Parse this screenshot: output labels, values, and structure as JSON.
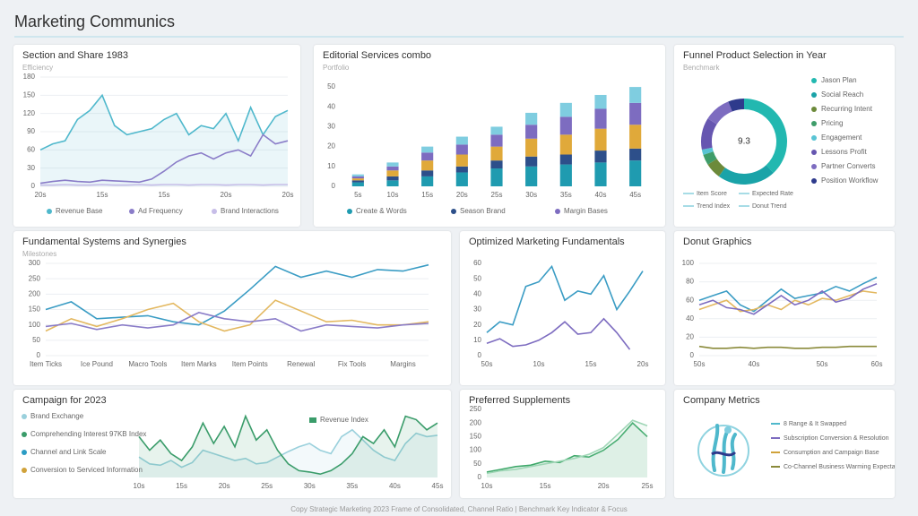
{
  "header": {
    "title": "Marketing Communics"
  },
  "chart_data": [
    {
      "type": "line",
      "title": "Section and Share 1983",
      "subtitle": "Efficiency",
      "categories": [
        "20s",
        null,
        null,
        null,
        null,
        "15s",
        null,
        null,
        null,
        null,
        "15s",
        null,
        null,
        null,
        null,
        "20s",
        null,
        null,
        null,
        null,
        "20s"
      ],
      "series": [
        {
          "name": "Revenue Base",
          "color": "#4fb8cc",
          "values": [
            60,
            70,
            75,
            110,
            125,
            150,
            100,
            85,
            90,
            95,
            110,
            120,
            85,
            100,
            95,
            120,
            75,
            130,
            85,
            115,
            125
          ]
        },
        {
          "name": "Ad Frequency",
          "color": "#8a7cc8",
          "values": [
            5,
            8,
            10,
            8,
            7,
            10,
            9,
            8,
            7,
            12,
            25,
            40,
            50,
            55,
            45,
            55,
            60,
            50,
            85,
            70,
            75
          ]
        },
        {
          "name": "Brand Interactions",
          "color": "#c7bde8",
          "values": [
            2,
            2,
            3,
            2,
            2,
            3,
            2,
            2,
            3,
            2,
            3,
            3,
            2,
            3,
            3,
            2,
            3,
            3,
            2,
            3,
            3
          ]
        }
      ],
      "ylim": [
        0,
        180
      ],
      "yticks": [
        0,
        30,
        60,
        90,
        120,
        150,
        180
      ],
      "grid": true
    },
    {
      "type": "stacked_bar",
      "title": "Editorial Services combo",
      "subtitle": "Portfolio",
      "categories": [
        "5s",
        "10s",
        "15s",
        "20s",
        "25s",
        "30s",
        "35s",
        "40s",
        "45s"
      ],
      "series": [
        {
          "name": "Create & Words",
          "color": "#1f9bb0",
          "values": [
            2,
            3,
            5,
            7,
            9,
            10,
            11,
            12,
            13
          ]
        },
        {
          "name": "Season Brand",
          "color": "#2d4f8a",
          "values": [
            1,
            2,
            3,
            3,
            4,
            5,
            5,
            6,
            6
          ]
        },
        {
          "color": "#e0a93a",
          "values": [
            1,
            3,
            5,
            6,
            7,
            9,
            10,
            11,
            12
          ]
        },
        {
          "name": "Margin Bases",
          "color": "#7d6cc0",
          "values": [
            1,
            2,
            4,
            5,
            6,
            7,
            9,
            10,
            11
          ]
        },
        {
          "color": "#7fcde0",
          "values": [
            1,
            2,
            3,
            4,
            4,
            6,
            7,
            7,
            8
          ]
        }
      ],
      "ylim": [
        0,
        55
      ],
      "yticks": [
        0,
        10,
        20,
        30,
        40,
        50
      ],
      "grid": false
    },
    {
      "type": "donut",
      "title": "Funnel Product Selection in Year",
      "subtitle": "Benchmark",
      "center_label": "9.3",
      "categories": [
        "Jason Plan",
        "Social Reach",
        "Recurring Intent",
        "Pricing",
        "Engagement",
        "Lessons Profit",
        "Partner Converts",
        "Position Workflow"
      ],
      "colors": [
        "#22b8b0",
        "#1aa3a8",
        "#6c8a3a",
        "#3f9d6a",
        "#59c4d4",
        "#6656b0",
        "#7d6cc0",
        "#2e3a8c"
      ],
      "values": [
        38,
        22,
        6,
        4,
        2,
        12,
        10,
        6
      ],
      "annotations": [
        "Item Score",
        "Expected Rate",
        "Trend Index",
        "Donut Trend"
      ]
    },
    {
      "type": "line",
      "title": "Fundamental Systems and Synergies",
      "subtitle": "Milestones",
      "categories": [
        "Item Ticks",
        null,
        "Ice Pound",
        null,
        "Macro Tools",
        null,
        "Item Marks",
        null,
        "Item Points",
        null,
        "Renewal",
        null,
        "Fix Tools",
        null,
        "Margins",
        null
      ],
      "series": [
        {
          "color": "#3a9cc4",
          "values": [
            150,
            175,
            120,
            125,
            130,
            110,
            100,
            145,
            215,
            290,
            255,
            275,
            255,
            280,
            275,
            295
          ]
        },
        {
          "color": "#e3b860",
          "values": [
            80,
            120,
            95,
            120,
            150,
            170,
            110,
            80,
            100,
            180,
            145,
            110,
            115,
            100,
            100,
            110
          ]
        },
        {
          "color": "#8a7cc8",
          "values": [
            95,
            105,
            85,
            100,
            90,
            100,
            140,
            120,
            110,
            120,
            80,
            100,
            95,
            90,
            100,
            105
          ]
        }
      ],
      "ylim": [
        0,
        300
      ],
      "yticks": [
        0,
        50,
        100,
        150,
        200,
        250,
        300
      ],
      "grid": true
    },
    {
      "type": "line",
      "title": "Optimized Marketing Fundamentals",
      "categories": [
        "50s",
        null,
        null,
        null,
        "10s",
        null,
        null,
        null,
        "15s",
        null,
        null,
        null,
        "20s"
      ],
      "series": [
        {
          "color": "#3a9cc4",
          "values": [
            15,
            22,
            20,
            45,
            48,
            58,
            36,
            42,
            40,
            52,
            30,
            42,
            55
          ]
        },
        {
          "color": "#7d6cc0",
          "values": [
            8,
            11,
            6,
            7,
            10,
            15,
            22,
            14,
            15,
            24,
            15,
            4,
            null
          ]
        }
      ],
      "ylim": [
        0,
        60
      ],
      "yticks": [
        0,
        10,
        20,
        30,
        40,
        50,
        60
      ],
      "grid": false
    },
    {
      "type": "line",
      "title": "Donut Graphics",
      "categories": [
        "50s",
        null,
        null,
        null,
        "40s",
        null,
        null,
        null,
        null,
        "50s",
        null,
        null,
        null,
        "60s"
      ],
      "series": [
        {
          "color": "#3a9cc4",
          "values": [
            60,
            65,
            70,
            55,
            48,
            60,
            72,
            62,
            65,
            68,
            75,
            70,
            78,
            85
          ]
        },
        {
          "color": "#e3b860",
          "values": [
            50,
            55,
            60,
            48,
            50,
            55,
            50,
            60,
            55,
            62,
            60,
            65,
            70,
            68
          ]
        },
        {
          "color": "#7d6cc0",
          "values": [
            55,
            60,
            52,
            50,
            45,
            55,
            65,
            55,
            60,
            70,
            58,
            62,
            72,
            78
          ]
        },
        {
          "color": "#8a8a3a",
          "values": [
            10,
            8,
            8,
            9,
            8,
            9,
            9,
            8,
            8,
            9,
            9,
            10,
            10,
            10
          ]
        }
      ],
      "ylim": [
        0,
        100
      ],
      "yticks": [
        0,
        20,
        40,
        60,
        80,
        100
      ],
      "grid": true
    },
    {
      "type": "area",
      "title": "Campaign for 2023",
      "annotation": "Revenue Index",
      "categories": [
        "10s",
        null,
        null,
        null,
        "15s",
        null,
        null,
        null,
        "20s",
        null,
        null,
        null,
        "25s",
        null,
        null,
        null,
        "30s",
        null,
        null,
        null,
        "35s",
        null,
        null,
        null,
        "40s",
        null,
        null,
        null,
        "45s"
      ],
      "series": [
        {
          "name": "Brand Exchange",
          "color": "#9ad0dc",
          "values": [
            30,
            20,
            18,
            25,
            15,
            22,
            40,
            35,
            30,
            25,
            28,
            20,
            22,
            30,
            38,
            45,
            50,
            40,
            35,
            60,
            70,
            55,
            40,
            30,
            25,
            50,
            65,
            60,
            62
          ]
        },
        {
          "name": "Comprehending Interest 97KB Index",
          "color": "#3a9c6a",
          "values": [
            60,
            40,
            55,
            35,
            25,
            45,
            80,
            50,
            75,
            45,
            90,
            55,
            70,
            40,
            20,
            10,
            8,
            5,
            10,
            20,
            35,
            60,
            50,
            70,
            45,
            90,
            85,
            70,
            80
          ]
        },
        {
          "name": "Channel and Link Scale",
          "color": "#2b9cc4",
          "values": null
        },
        {
          "name": "Conversion to Serviced Information",
          "color": "#d0a23a",
          "values": null
        }
      ],
      "ylim": [
        0,
        100
      ],
      "grid": false
    },
    {
      "type": "area",
      "title": "Preferred Supplements",
      "categories": [
        "10s",
        null,
        null,
        null,
        "15s",
        null,
        null,
        null,
        "20s",
        null,
        null,
        "25s"
      ],
      "series": [
        {
          "color": "#3ea86a",
          "values": [
            20,
            30,
            40,
            45,
            60,
            55,
            80,
            75,
            100,
            140,
            200,
            150
          ]
        },
        {
          "color": "#9fd6b6",
          "values": [
            15,
            25,
            30,
            40,
            50,
            60,
            70,
            85,
            110,
            160,
            210,
            190
          ]
        }
      ],
      "ylim": [
        0,
        250
      ],
      "yticks": [
        0,
        50,
        100,
        150,
        200,
        250
      ],
      "grid": false
    }
  ],
  "metrics": {
    "title": "Company Metrics",
    "items": [
      {
        "name": "8 Range & It Swapped",
        "color": "#4fb8cc"
      },
      {
        "name": "Subscription Conversion & Resolution",
        "color": "#7d6cc0"
      },
      {
        "name": "Consumption and Campaign Base",
        "color": "#d0a23a"
      },
      {
        "name": "Co-Channel Business Warming Expectations",
        "color": "#8a8a3a"
      }
    ]
  },
  "footer": "Copy Strategic Marketing 2023 Frame of Consolidated, Channel Ratio | Benchmark Key Indicator & Focus"
}
